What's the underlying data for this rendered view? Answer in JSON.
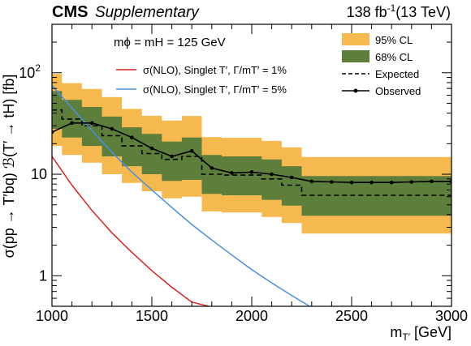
{
  "chart_data": {
    "type": "line",
    "experiment": "CMS",
    "status": "Supplementary",
    "lumi": "138 fb",
    "lumi_exponent": "-1",
    "energy": "(13 TeV)",
    "xlabel": "m",
    "xlabel_sub": "T′",
    "xlabel_unit": " [GeV]",
    "ylabel": "σ(pp → T′bq) ℬ(T′ → tH) [fb]",
    "xlim": [
      1000,
      3000
    ],
    "ylim": [
      0.5,
      300
    ],
    "yscale": "log",
    "x_ticks": [
      1000,
      1500,
      2000,
      2500,
      3000
    ],
    "y_ticks": [
      {
        "value": 1,
        "label": "1",
        "exp": ""
      },
      {
        "value": 10,
        "label": "10",
        "exp": ""
      },
      {
        "value": 100,
        "label": "10",
        "exp": "2"
      }
    ],
    "annotation": "mϕ = mH = 125 GeV",
    "legend_left": [
      {
        "label": "σ(NLO),  Singlet T′,  Γ/mT′ = 1%",
        "color": "#dd2222",
        "style": "solid"
      },
      {
        "label": "σ(NLO),  Singlet T′,  Γ/mT′ = 5%",
        "color": "#4a90e2",
        "style": "solid"
      }
    ],
    "legend_right": [
      {
        "label": "95% CL",
        "color": "#f5b94f",
        "kind": "band"
      },
      {
        "label": "68% CL",
        "color": "#5e7f3c",
        "kind": "band"
      },
      {
        "label": "Expected",
        "color": "#000000",
        "kind": "dashed"
      },
      {
        "label": "Observed",
        "color": "#000000",
        "kind": "marker"
      }
    ],
    "mass_points": [
      1000,
      1100,
      1200,
      1300,
      1400,
      1500,
      1600,
      1700,
      1800,
      1900,
      2000,
      2100,
      2200,
      2300,
      2400,
      2500,
      2600,
      2700,
      2800,
      2900,
      3000
    ],
    "expected": [
      43,
      35,
      30,
      24,
      19,
      16,
      14,
      15,
      10,
      9.8,
      9.8,
      9,
      7.8,
      6.2,
      6.2,
      6.2,
      6.2,
      6.2,
      6.2,
      6.2,
      6.2
    ],
    "band68": {
      "lower": [
        28,
        23,
        19,
        15,
        12,
        10,
        8.6,
        8.8,
        6.4,
        6.2,
        6.2,
        5.6,
        4.9,
        3.9,
        3.9,
        3.9,
        3.9,
        3.9,
        3.9,
        3.9,
        3.9
      ],
      "upper": [
        66,
        54,
        46,
        37,
        29,
        25,
        21,
        23,
        15.5,
        15,
        15,
        14,
        12,
        9.6,
        9.6,
        9.6,
        9.6,
        9.6,
        9.6,
        9.6,
        9.6
      ]
    },
    "band95": {
      "lower": [
        19,
        15.5,
        13,
        10,
        8.2,
        6.8,
        5.8,
        6,
        4.3,
        4.2,
        4.2,
        3.8,
        3.3,
        2.6,
        2.6,
        2.6,
        2.6,
        2.6,
        2.6,
        2.6,
        2.6
      ]
    },
    "observed": [
      26,
      32,
      32,
      28,
      23,
      18,
      15,
      17,
      11.5,
      10.3,
      10.5,
      10,
      9.3,
      8.5,
      8.4,
      8.3,
      8.3,
      8.3,
      8.4,
      8.5,
      8.5
    ],
    "theory_1pct": {
      "x": [
        1000,
        1100,
        1200,
        1300,
        1400,
        1500,
        1600,
        1700,
        1785
      ],
      "y": [
        15,
        7.8,
        4.4,
        2.65,
        1.7,
        1.12,
        0.77,
        0.55,
        0.5
      ]
    },
    "theory_5pct": {
      "x": [
        1000,
        1100,
        1200,
        1300,
        1400,
        1500,
        1600,
        1700,
        1800,
        1900,
        2000,
        2100,
        2200,
        2290
      ],
      "y": [
        75,
        45,
        27,
        16.5,
        10.5,
        7.0,
        4.7,
        3.2,
        2.25,
        1.6,
        1.15,
        0.85,
        0.64,
        0.5
      ]
    }
  }
}
